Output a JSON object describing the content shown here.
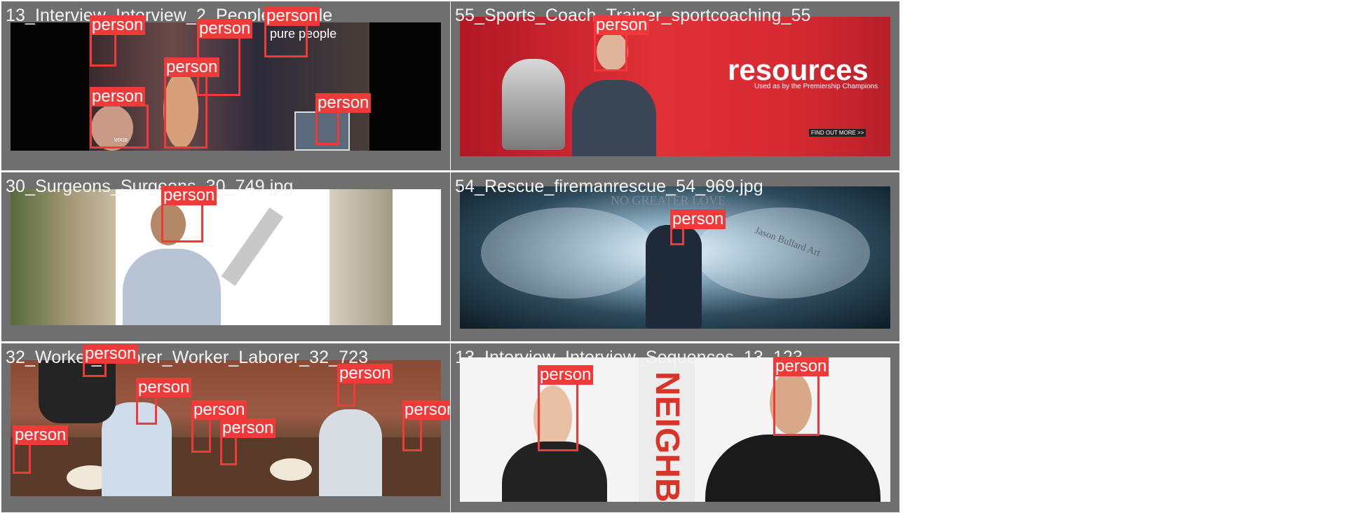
{
  "tiles": [
    {
      "title": "13_Interview_Interview_2_People_Visible",
      "overlay": {
        "brand": "pure people",
        "tag": "vous"
      },
      "boxes": [
        "person",
        "person",
        "person",
        "person",
        "person",
        "person"
      ]
    },
    {
      "title": "55_Sports_Coach_Trainer_sportcoaching_55",
      "overlay": {
        "headline": "resources",
        "subline": "Used as by the Premiership Champions",
        "cta": "FIND OUT MORE >>"
      },
      "boxes": [
        "person"
      ]
    },
    {
      "title": "30_Surgeons_Surgeons_30_749.jpg",
      "boxes": [
        "person"
      ]
    },
    {
      "title": "54_Rescue_firemanrescue_54_969.jpg",
      "overlay": {
        "headline": "NO GREATER LOVE",
        "signature": "Jason Bullard Art"
      },
      "boxes": [
        "person"
      ]
    },
    {
      "title": "32_Worker_Laborer_Worker_Laborer_32_723",
      "boxes": [
        "person",
        "person",
        "person",
        "person",
        "person",
        "person",
        "person"
      ]
    },
    {
      "title": "13_Interview_Interview_Sequences_13_123",
      "overlay": {
        "sign": "NEIGHB"
      },
      "boxes": [
        "person",
        "person"
      ]
    }
  ],
  "colors": {
    "tile_background": "#6f6f6f",
    "box_color": "#f03a3a",
    "label_text": "#ffffff",
    "title_text": "#f4f4f4"
  }
}
